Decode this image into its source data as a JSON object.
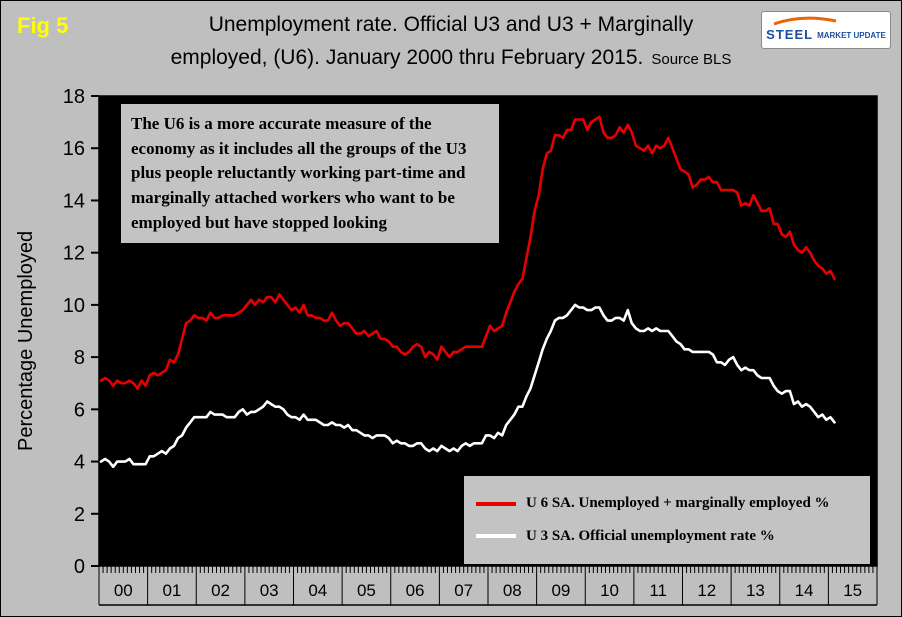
{
  "fig_label": "Fig 5",
  "title": {
    "line1": "Unemployment rate. Official U3 and U3 + Marginally",
    "line2": "employed, (U6). January 2000 thru February 2015.",
    "source": "Source BLS"
  },
  "logo": {
    "word1": "STEEL",
    "word2": "MARKET UPDATE"
  },
  "y_axis_title": "Percentage Unemployed",
  "annotation": "The U6 is a more accurate measure of the economy as it includes all the groups of the U3 plus people reluctantly working part-time and marginally attached workers who want to be employed but have stopped looking",
  "legend": [
    {
      "label": "U 6 SA. Unemployed + marginally employed %",
      "color": "#e60000"
    },
    {
      "label": "U 3 SA. Official unemployment rate %",
      "color": "#ffffff"
    }
  ],
  "colors": {
    "page_bg": "#bfbfbf",
    "plot_bg": "#000000",
    "u6_line": "#e60000",
    "u3_line": "#ffffff",
    "fig_label": "#ffff00"
  },
  "chart_data": {
    "type": "line",
    "title": "Unemployment rate. Official U3 and U3 + Marginally employed, (U6). January 2000 thru February 2015.",
    "xlabel": "",
    "ylabel": "Percentage Unemployed",
    "x_start": "2000-01",
    "x_end": "2015-02",
    "x_tick_labels": [
      "00",
      "01",
      "02",
      "03",
      "04",
      "05",
      "06",
      "07",
      "08",
      "09",
      "10",
      "11",
      "12",
      "13",
      "14",
      "15"
    ],
    "ylim": [
      0,
      18
    ],
    "y_tick_step": 2,
    "grid": false,
    "legend_position": "inside-bottom-right",
    "series": [
      {
        "name": "U 6 SA. Unemployed + marginally employed %",
        "color": "#e60000",
        "values": [
          7.1,
          7.2,
          7.1,
          6.9,
          7.1,
          7.0,
          7.0,
          7.1,
          7.0,
          6.8,
          7.1,
          6.9,
          7.3,
          7.4,
          7.3,
          7.4,
          7.5,
          7.9,
          7.8,
          8.1,
          8.7,
          9.3,
          9.4,
          9.6,
          9.5,
          9.5,
          9.4,
          9.7,
          9.5,
          9.5,
          9.6,
          9.6,
          9.6,
          9.6,
          9.7,
          9.8,
          10.0,
          10.2,
          10.0,
          10.2,
          10.1,
          10.3,
          10.3,
          10.1,
          10.4,
          10.2,
          10.0,
          9.8,
          9.9,
          9.7,
          10.0,
          9.6,
          9.6,
          9.5,
          9.5,
          9.4,
          9.4,
          9.7,
          9.4,
          9.2,
          9.3,
          9.3,
          9.1,
          8.9,
          8.9,
          9.0,
          8.8,
          8.9,
          9.0,
          8.7,
          8.7,
          8.6,
          8.4,
          8.4,
          8.2,
          8.1,
          8.2,
          8.4,
          8.5,
          8.4,
          8.0,
          8.2,
          8.1,
          7.9,
          8.4,
          8.2,
          8.0,
          8.2,
          8.2,
          8.3,
          8.4,
          8.4,
          8.4,
          8.4,
          8.4,
          8.8,
          9.2,
          9.0,
          9.1,
          9.2,
          9.7,
          10.1,
          10.5,
          10.8,
          11.0,
          11.8,
          12.6,
          13.6,
          14.2,
          15.2,
          15.8,
          15.9,
          16.5,
          16.5,
          16.4,
          16.7,
          16.7,
          17.1,
          17.1,
          17.1,
          16.7,
          17.0,
          17.1,
          17.2,
          16.6,
          16.4,
          16.4,
          16.5,
          16.8,
          16.6,
          16.9,
          16.6,
          16.1,
          16.0,
          15.9,
          16.1,
          15.8,
          16.1,
          16.0,
          16.1,
          16.4,
          16.0,
          15.6,
          15.2,
          15.1,
          15.0,
          14.5,
          14.6,
          14.8,
          14.8,
          14.9,
          14.7,
          14.7,
          14.4,
          14.4,
          14.4,
          14.4,
          14.3,
          13.8,
          13.9,
          13.8,
          14.2,
          13.9,
          13.6,
          13.6,
          13.7,
          13.1,
          13.1,
          12.7,
          12.6,
          12.8,
          12.3,
          12.1,
          12.0,
          12.2,
          12.0,
          11.7,
          11.5,
          11.4,
          11.2,
          11.3,
          11.0
        ]
      },
      {
        "name": "U 3 SA. Official unemployment rate %",
        "color": "#ffffff",
        "values": [
          4.0,
          4.1,
          4.0,
          3.8,
          4.0,
          4.0,
          4.0,
          4.1,
          3.9,
          3.9,
          3.9,
          3.9,
          4.2,
          4.2,
          4.3,
          4.4,
          4.3,
          4.5,
          4.6,
          4.9,
          5.0,
          5.3,
          5.5,
          5.7,
          5.7,
          5.7,
          5.7,
          5.9,
          5.8,
          5.8,
          5.8,
          5.7,
          5.7,
          5.7,
          5.9,
          6.0,
          5.8,
          5.9,
          5.9,
          6.0,
          6.1,
          6.3,
          6.2,
          6.1,
          6.1,
          6.0,
          5.8,
          5.7,
          5.7,
          5.6,
          5.8,
          5.6,
          5.6,
          5.6,
          5.5,
          5.4,
          5.4,
          5.5,
          5.4,
          5.4,
          5.3,
          5.4,
          5.2,
          5.2,
          5.1,
          5.0,
          5.0,
          4.9,
          5.0,
          5.0,
          5.0,
          4.9,
          4.7,
          4.8,
          4.7,
          4.7,
          4.6,
          4.6,
          4.7,
          4.7,
          4.5,
          4.4,
          4.5,
          4.4,
          4.6,
          4.5,
          4.4,
          4.5,
          4.4,
          4.6,
          4.7,
          4.6,
          4.7,
          4.7,
          4.7,
          5.0,
          5.0,
          4.9,
          5.1,
          5.0,
          5.4,
          5.6,
          5.8,
          6.1,
          6.1,
          6.5,
          6.8,
          7.3,
          7.8,
          8.3,
          8.7,
          9.0,
          9.4,
          9.5,
          9.5,
          9.6,
          9.8,
          10.0,
          9.9,
          9.9,
          9.8,
          9.8,
          9.9,
          9.9,
          9.6,
          9.4,
          9.4,
          9.5,
          9.5,
          9.4,
          9.8,
          9.3,
          9.1,
          9.0,
          9.0,
          9.1,
          9.0,
          9.1,
          9.0,
          9.0,
          9.0,
          8.8,
          8.6,
          8.5,
          8.3,
          8.3,
          8.2,
          8.2,
          8.2,
          8.2,
          8.2,
          8.1,
          7.8,
          7.8,
          7.7,
          7.9,
          8.0,
          7.7,
          7.5,
          7.6,
          7.5,
          7.5,
          7.3,
          7.2,
          7.2,
          7.2,
          6.9,
          6.7,
          6.6,
          6.7,
          6.7,
          6.2,
          6.3,
          6.1,
          6.2,
          6.1,
          5.9,
          5.7,
          5.8,
          5.6,
          5.7,
          5.5
        ]
      }
    ]
  }
}
